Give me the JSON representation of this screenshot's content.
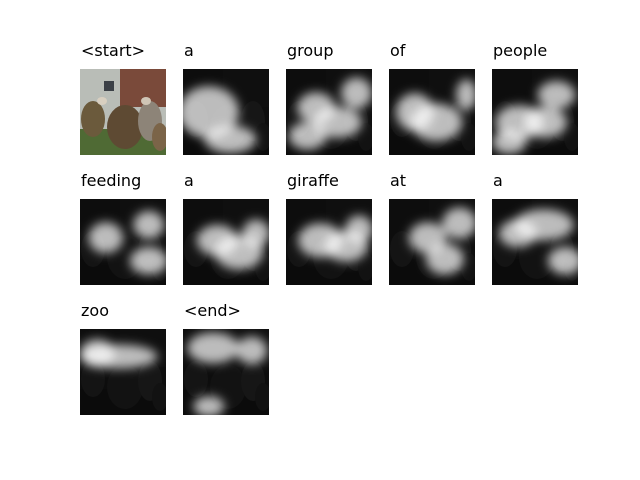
{
  "steps": [
    {
      "word": "<start>",
      "attention": "original"
    },
    {
      "word": "a",
      "attention": [
        [
          0.55,
          0.82,
          0.3,
          0.16
        ],
        [
          0.3,
          0.5,
          0.35,
          0.3
        ]
      ]
    },
    {
      "word": "group",
      "attention": [
        [
          0.35,
          0.45,
          0.22,
          0.18
        ],
        [
          0.6,
          0.62,
          0.28,
          0.18
        ],
        [
          0.82,
          0.28,
          0.18,
          0.18
        ],
        [
          0.25,
          0.78,
          0.22,
          0.16
        ]
      ]
    },
    {
      "word": "of",
      "attention": [
        [
          0.55,
          0.62,
          0.3,
          0.22
        ],
        [
          0.9,
          0.3,
          0.12,
          0.18
        ],
        [
          0.3,
          0.5,
          0.22,
          0.22
        ]
      ]
    },
    {
      "word": "people",
      "attention": [
        [
          0.32,
          0.62,
          0.28,
          0.2
        ],
        [
          0.62,
          0.62,
          0.25,
          0.18
        ],
        [
          0.75,
          0.3,
          0.22,
          0.16
        ],
        [
          0.2,
          0.85,
          0.2,
          0.14
        ]
      ]
    },
    {
      "word": "feeding",
      "attention": [
        [
          0.8,
          0.72,
          0.22,
          0.16
        ],
        [
          0.3,
          0.45,
          0.2,
          0.18
        ],
        [
          0.8,
          0.3,
          0.18,
          0.16
        ]
      ]
    },
    {
      "word": "a",
      "attention": [
        [
          0.65,
          0.62,
          0.28,
          0.2
        ],
        [
          0.4,
          0.48,
          0.24,
          0.18
        ],
        [
          0.85,
          0.4,
          0.16,
          0.16
        ]
      ]
    },
    {
      "word": "giraffe",
      "attention": [
        [
          0.4,
          0.48,
          0.26,
          0.2
        ],
        [
          0.7,
          0.55,
          0.25,
          0.18
        ],
        [
          0.85,
          0.35,
          0.16,
          0.16
        ]
      ]
    },
    {
      "word": "at",
      "attention": [
        [
          0.82,
          0.28,
          0.2,
          0.18
        ],
        [
          0.45,
          0.45,
          0.22,
          0.18
        ],
        [
          0.65,
          0.7,
          0.22,
          0.18
        ]
      ]
    },
    {
      "word": "a",
      "attention": [
        [
          0.6,
          0.3,
          0.35,
          0.18
        ],
        [
          0.85,
          0.72,
          0.2,
          0.16
        ],
        [
          0.3,
          0.4,
          0.22,
          0.16
        ]
      ]
    },
    {
      "word": "zoo",
      "attention": [
        [
          0.45,
          0.32,
          0.45,
          0.14
        ],
        [
          0.2,
          0.28,
          0.2,
          0.16
        ]
      ]
    },
    {
      "word": "<end>",
      "attention": [
        [
          0.35,
          0.22,
          0.3,
          0.18
        ],
        [
          0.8,
          0.25,
          0.18,
          0.16
        ],
        [
          0.3,
          0.9,
          0.18,
          0.12
        ]
      ]
    }
  ]
}
